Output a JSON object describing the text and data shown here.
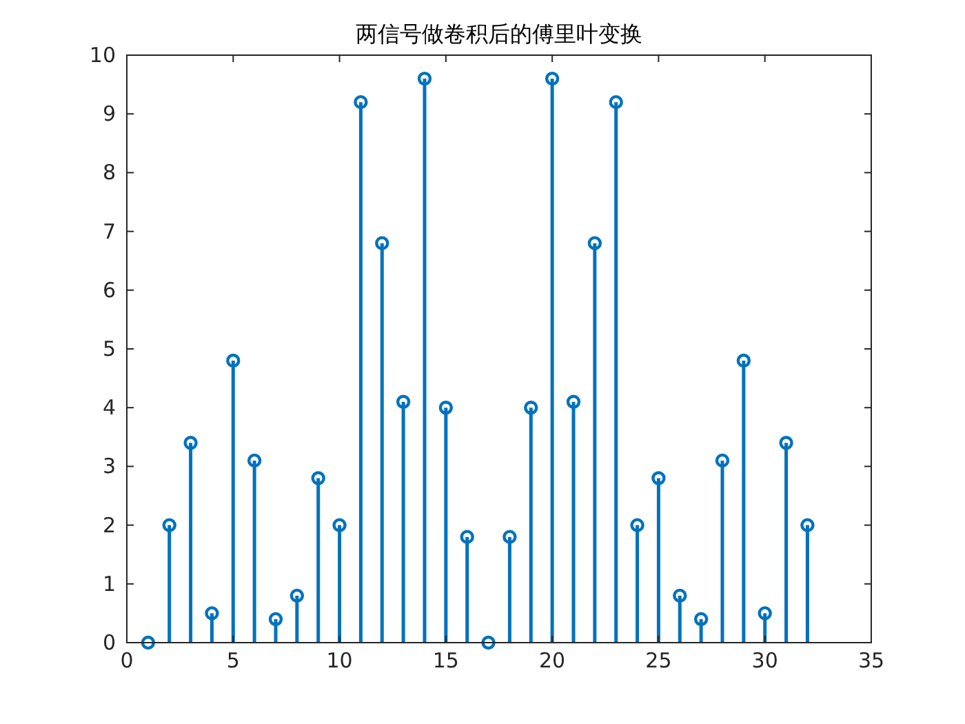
{
  "chart_data": {
    "type": "lollipop",
    "title": "两信号做卷积后的傅里叶变换",
    "x": [
      1,
      2,
      3,
      4,
      5,
      6,
      7,
      8,
      9,
      10,
      11,
      12,
      13,
      14,
      15,
      16,
      17,
      18,
      19,
      20,
      21,
      22,
      23,
      24,
      25,
      26,
      27,
      28,
      29,
      30,
      31,
      32
    ],
    "series": [
      {
        "color": "#0072bd",
        "values": [
          0,
          2.0,
          3.4,
          0.5,
          4.8,
          3.1,
          0.4,
          0.8,
          2.8,
          2.0,
          9.2,
          6.8,
          4.1,
          9.6,
          4.0,
          1.8,
          0,
          1.8,
          4.0,
          9.6,
          4.1,
          6.8,
          9.2,
          2.0,
          2.8,
          0.8,
          0.4,
          3.1,
          4.8,
          0.5,
          3.4,
          2.0
        ]
      }
    ],
    "xlim": [
      0,
      35
    ],
    "xticks": [
      0,
      5,
      10,
      15,
      20,
      25,
      30,
      35
    ],
    "ylim": [
      0,
      10
    ],
    "yticks": [
      0,
      1,
      2,
      3,
      4,
      5,
      6,
      7,
      8,
      9,
      10
    ],
    "marker": "circle"
  }
}
